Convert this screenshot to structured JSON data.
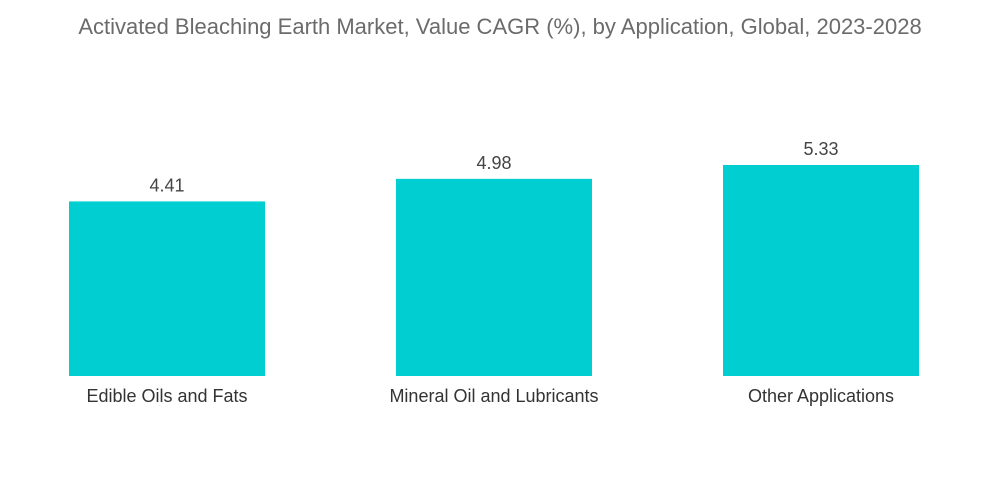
{
  "chart_data": {
    "type": "bar",
    "title": "Activated Bleaching Earth Market, Value CAGR (%), by Application, Global, 2023-2028",
    "categories": [
      "Edible Oils and Fats",
      "Mineral Oil and Lubricants",
      "Other Applications"
    ],
    "values": [
      4.41,
      4.98,
      5.33
    ],
    "value_labels": [
      "4.41",
      "4.98",
      "5.33"
    ],
    "xlabel": "",
    "ylabel": "",
    "ylim": [
      0,
      5.33
    ],
    "grid": false,
    "bar_color": "#00CED1"
  }
}
